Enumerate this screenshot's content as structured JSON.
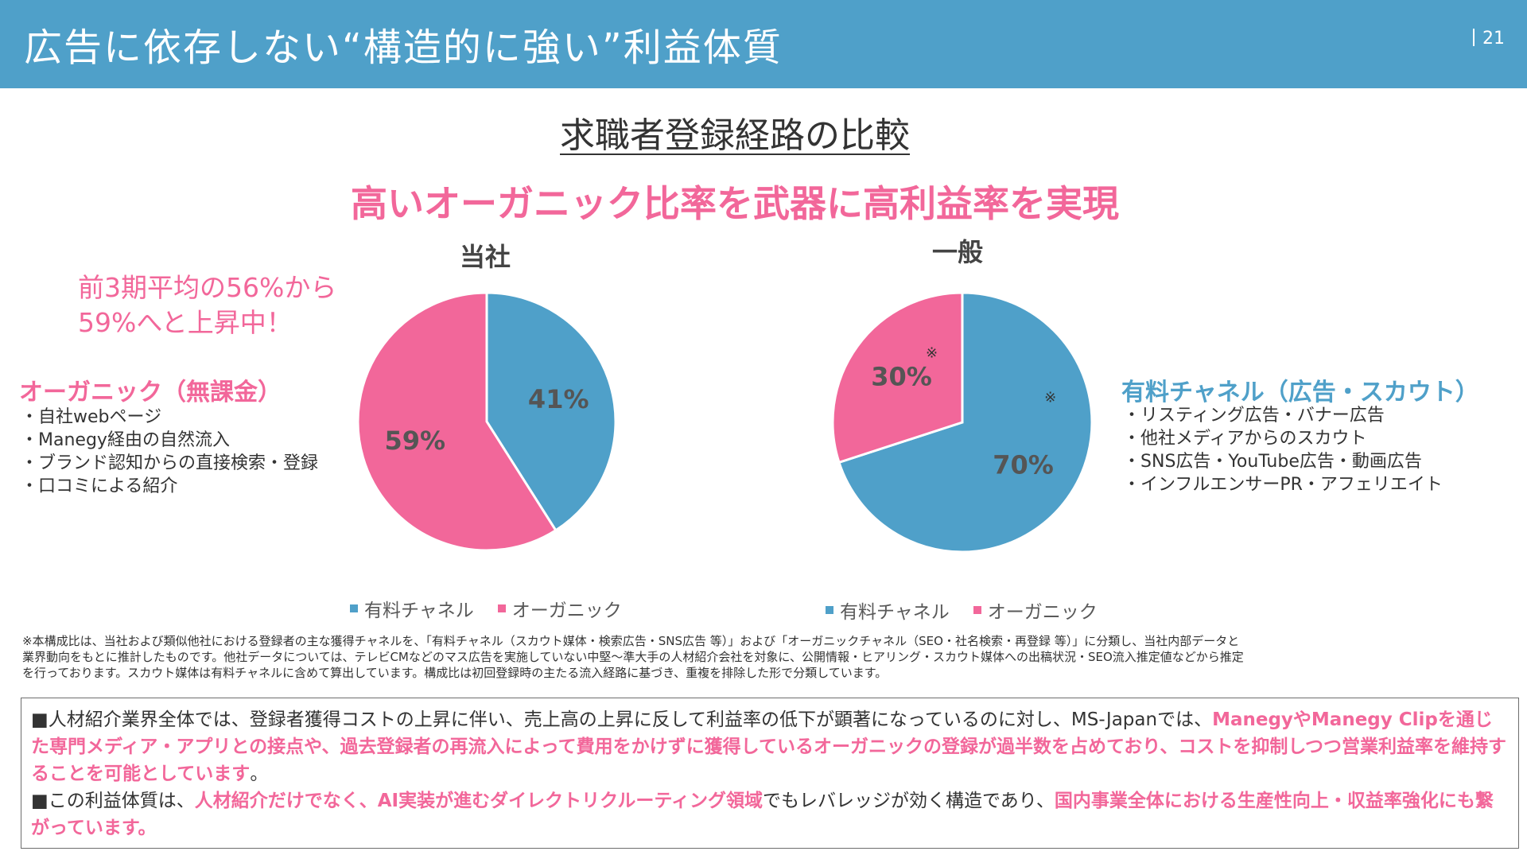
{
  "header": {
    "title": "広告に依存しない“構造的に強い”利益体質",
    "page_number": "21"
  },
  "section_title": "求職者登録経路の比較",
  "headline": "高いオーガニック比率を武器に高利益率を実現",
  "left_note": {
    "line1": "前3期平均の56%から",
    "line2": "59%へと上昇中！"
  },
  "organic_block": {
    "title": "オーガニック（無課金）",
    "items": [
      "自社webページ",
      "Manegy経由の自然流入",
      "ブランド認知からの直接検索・登録",
      "口コミによる紹介"
    ]
  },
  "paid_block": {
    "title": "有料チャネル（広告・スカウト）",
    "items": [
      "リスティング広告・バナー広告",
      "他社メディアからのスカウト",
      "SNS広告・YouTube広告・動画広告",
      "インフルエンサーPR・アフェリエイト"
    ]
  },
  "colors": {
    "header": "#4fa0c9",
    "paid": "#4fa0c9",
    "organic": "#f2679a"
  },
  "chart_data": [
    {
      "type": "pie",
      "title": "当社",
      "categories": [
        "有料チャネル",
        "オーガニック"
      ],
      "values": [
        41,
        59
      ],
      "data_labels": [
        "41%",
        "59%"
      ],
      "legend": [
        "有料チャネル",
        "オーガニック"
      ],
      "legend_position": "bottom",
      "start": "12 o'clock, clockwise"
    },
    {
      "type": "pie",
      "title": "一般",
      "categories": [
        "有料チャネル",
        "オーガニック"
      ],
      "values": [
        70,
        30
      ],
      "data_labels": [
        "70%",
        "30%"
      ],
      "annotation_marks": [
        "※",
        "※"
      ],
      "legend": [
        "有料チャネル",
        "オーガニック"
      ],
      "legend_position": "bottom",
      "start": "12 o'clock, clockwise"
    }
  ],
  "footnote": {
    "line1": "※本構成比は、当社および類似他社における登録者の主な獲得チャネルを、「有料チャネル（スカウト媒体・検索広告・SNS広告 等）」および「オーガニックチャネル（SEO・社名検索・再登録 等）」に分類し、当社内部データと",
    "line2": "業界動向をもとに推計したものです。他社データについては、テレビCMなどのマス広告を実施していない中堅～準大手の人材紹介会社を対象に、公開情報・ヒアリング・スカウト媒体への出稿状況・SEO流入推定値などから推定",
    "line3": "を行っております。スカウト媒体は有料チャネルに含めて算出しています。構成比は初回登録時の主たる流入経路に基づき、重複を排除した形で分類しています。"
  },
  "summary": {
    "p1_bullet": "■",
    "p1_text1": "人材紹介業界全体では、登録者獲得コストの上昇に伴い、売上高の上昇に反して利益率の低下が顕著になっているのに対し、MS-Japanでは、",
    "p1_hl1": "ManegyやManegy Clipを通じた専門メディア・アプリとの接点や、過去登録者の再流入によって費用をかけずに獲得しているオーガニックの登録が過半数を占めており、コストを抑制しつつ営業利益率を維持することを可能としています",
    "p1_text2": "。",
    "p2_bullet": "■",
    "p2_text1": "この利益体質は、",
    "p2_hl1": "人材紹介だけでなく、AI実装が進むダイレクトリクルーティング領域",
    "p2_text2": "でもレバレッジが効く構造であり、",
    "p2_hl2": "国内事業全体における生産性向上・収益率強化にも繋がっています。"
  }
}
